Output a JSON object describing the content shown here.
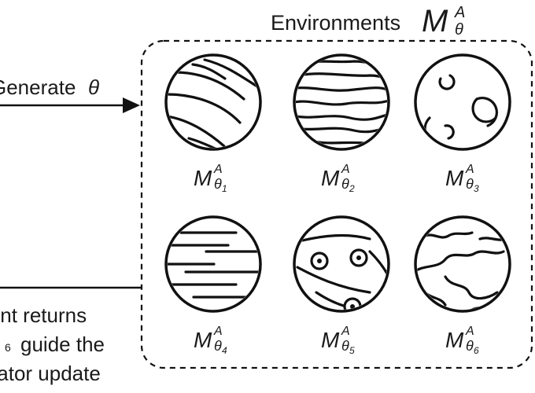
{
  "container": {
    "title_word": "Environments",
    "title_symbol": "M",
    "title_sup": "A",
    "title_sub": "θ"
  },
  "arrow_generate": {
    "text": "Generate",
    "symbol": "θ"
  },
  "feedback_text": {
    "line1": "Agent returns",
    "line2_symbol": "6",
    "line2_tail": "guide the",
    "line3": "Generator update"
  },
  "planets": [
    {
      "symbol": "M",
      "sup": "A",
      "sub": "θ",
      "index": "1",
      "pattern": "diagonal-bands-icon"
    },
    {
      "symbol": "M",
      "sup": "A",
      "sub": "θ",
      "index": "2",
      "pattern": "horizontal-swirl-bands-icon"
    },
    {
      "symbol": "M",
      "sup": "A",
      "sub": "θ",
      "index": "3",
      "pattern": "craters-icon"
    },
    {
      "symbol": "M",
      "sup": "A",
      "sub": "θ",
      "index": "4",
      "pattern": "horizontal-stripes-icon"
    },
    {
      "symbol": "M",
      "sup": "A",
      "sub": "θ",
      "index": "5",
      "pattern": "spots-bands-icon"
    },
    {
      "symbol": "M",
      "sup": "A",
      "sub": "θ",
      "index": "6",
      "pattern": "continents-icon"
    }
  ]
}
